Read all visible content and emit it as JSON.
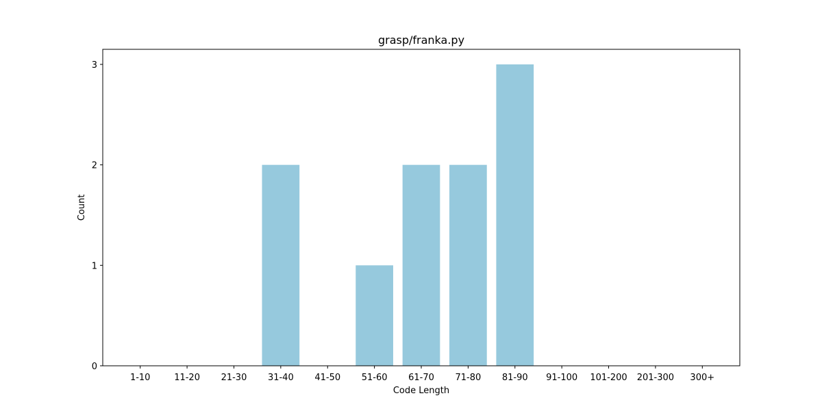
{
  "chart_data": {
    "type": "bar",
    "title": "grasp/franka.py",
    "xlabel": "Code Length",
    "ylabel": "Count",
    "categories": [
      "1-10",
      "11-20",
      "21-30",
      "31-40",
      "41-50",
      "51-60",
      "61-70",
      "71-80",
      "81-90",
      "91-100",
      "101-200",
      "201-300",
      "300+"
    ],
    "values": [
      0,
      0,
      0,
      2,
      0,
      1,
      2,
      2,
      3,
      0,
      0,
      0,
      0
    ],
    "ylim": [
      0,
      3.15
    ],
    "yticks": [
      0,
      1,
      2,
      3
    ],
    "bar_color": "#96c9dd",
    "grid": false,
    "legend": "none"
  }
}
